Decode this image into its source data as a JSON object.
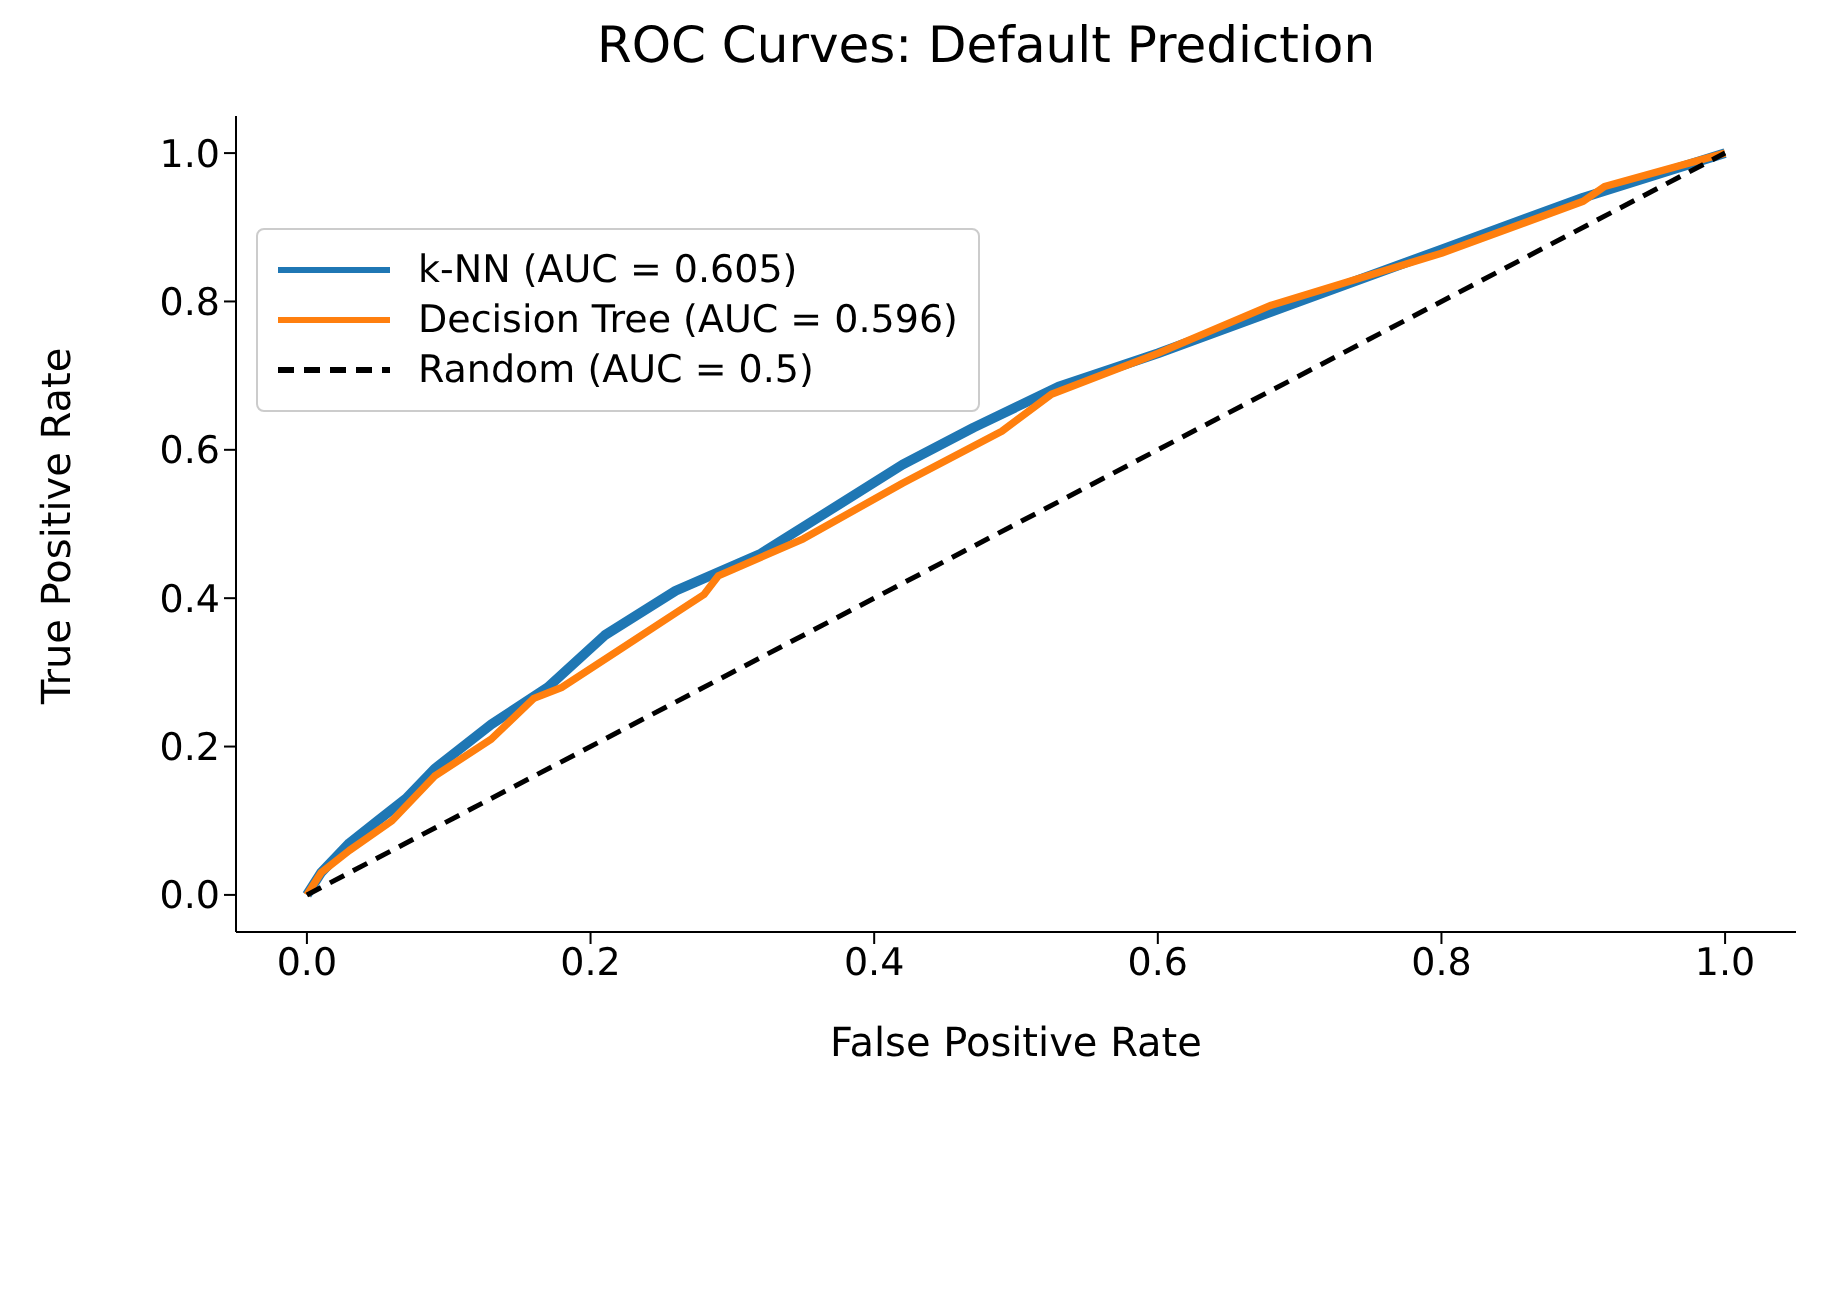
{
  "chart_data": {
    "type": "line",
    "title": "ROC Curves: Default Prediction",
    "xlabel": "False Positive Rate",
    "ylabel": "True Positive Rate",
    "xlim": [
      -0.05,
      1.05
    ],
    "ylim": [
      -0.05,
      1.05
    ],
    "xticks": [
      {
        "value": 0,
        "label": "0.0"
      },
      0.2,
      0.4,
      0.6,
      0.8,
      {
        "value": 1,
        "label": "1.0"
      }
    ],
    "yticks": [
      {
        "value": 0,
        "label": "0.0"
      },
      0.2,
      0.4,
      0.6,
      0.8,
      {
        "value": 1,
        "label": "1.0"
      }
    ],
    "grid": false,
    "legend": "top left",
    "marker": "none",
    "series": [
      {
        "name": "k-NN (AUC = 0.605)",
        "color": "#1f77b4",
        "line_style": "solid",
        "x": [
          0,
          0.01,
          0.03,
          0.05,
          0.07,
          0.09,
          0.13,
          0.17,
          0.21,
          0.26,
          0.32,
          0.37,
          0.42,
          0.47,
          0.53,
          0.6,
          0.7,
          0.8,
          0.9,
          0.95,
          1
        ],
        "values": [
          0,
          0.03,
          0.07,
          0.1,
          0.13,
          0.17,
          0.23,
          0.28,
          0.35,
          0.41,
          0.46,
          0.52,
          0.58,
          0.63,
          0.685,
          0.73,
          0.8,
          0.87,
          0.94,
          0.97,
          1
        ]
      },
      {
        "name": "Decision Tree (AUC = 0.596)",
        "color": "#ff7f0e",
        "line_style": "solid",
        "x": [
          0,
          0.01,
          0.03,
          0.06,
          0.09,
          0.13,
          0.16,
          0.18,
          0.22,
          0.26,
          0.28,
          0.29,
          0.35,
          0.42,
          0.49,
          0.525,
          0.6,
          0.68,
          0.8,
          0.9,
          0.915,
          1
        ],
        "values": [
          0,
          0.03,
          0.06,
          0.1,
          0.16,
          0.21,
          0.265,
          0.28,
          0.33,
          0.38,
          0.405,
          0.43,
          0.48,
          0.555,
          0.625,
          0.675,
          0.73,
          0.795,
          0.865,
          0.935,
          0.955,
          1
        ]
      },
      {
        "name": "Random (AUC = 0.5)",
        "color": "#000000",
        "line_style": "dashed",
        "x": [
          0,
          1
        ],
        "values": [
          0,
          1
        ]
      }
    ]
  }
}
